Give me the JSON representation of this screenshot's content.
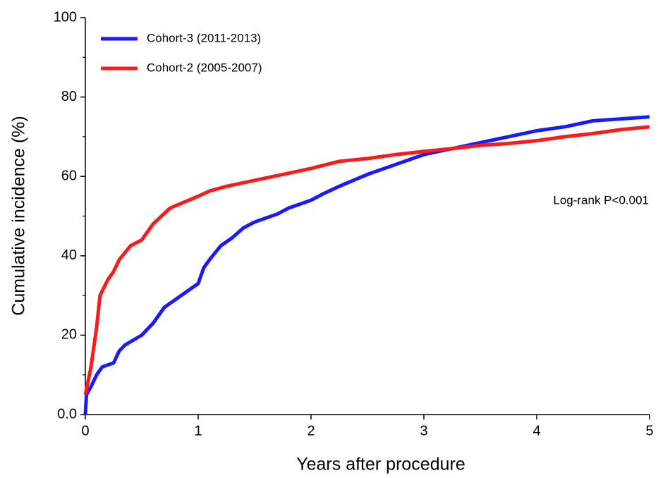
{
  "chart_data": {
    "type": "line",
    "xlabel": "Years after procedure",
    "ylabel": "Cumulative incidence (%)",
    "annotation": "Log-rank P<0.001",
    "xlim": [
      0,
      5
    ],
    "xticks": [
      0,
      1,
      2,
      3,
      4,
      5
    ],
    "ylim": [
      0,
      100
    ],
    "yticks": [
      {
        "value": 0,
        "label": "0.0"
      },
      20,
      40,
      60,
      80,
      100
    ],
    "yminor_ticks": [
      10,
      30,
      50,
      70,
      90
    ],
    "legend": "upper-left",
    "series": [
      {
        "name": "Cohort-3 (2011-2013)",
        "color": "#1a1aff",
        "x": [
          0,
          0.01,
          0.05,
          0.1,
          0.15,
          0.25,
          0.3,
          0.35,
          0.5,
          0.6,
          0.7,
          0.8,
          0.9,
          1.0,
          1.05,
          1.1,
          1.2,
          1.3,
          1.4,
          1.5,
          1.7,
          1.8,
          2.0,
          2.1,
          2.25,
          2.5,
          2.75,
          3.0,
          3.25,
          3.5,
          3.75,
          4.0,
          4.25,
          4.5,
          4.75,
          5.0
        ],
        "values": [
          0,
          5,
          7,
          10,
          12,
          13,
          16,
          17.5,
          20,
          23,
          27,
          29,
          31,
          33,
          37,
          39,
          42.5,
          44.5,
          47,
          48.5,
          50.5,
          52,
          54,
          55.5,
          57.5,
          60.5,
          63,
          65.5,
          67,
          68.5,
          70,
          71.5,
          72.5,
          74,
          74.5,
          75
        ]
      },
      {
        "name": "Cohort-2 (2005-2007)",
        "color": "#ff1a1a",
        "x": [
          0,
          0.05,
          0.1,
          0.13,
          0.2,
          0.25,
          0.3,
          0.4,
          0.5,
          0.6,
          0.75,
          1.0,
          1.1,
          1.25,
          1.5,
          1.75,
          2.0,
          2.25,
          2.5,
          2.75,
          3.0,
          3.25,
          3.5,
          3.75,
          4.0,
          4.25,
          4.5,
          4.75,
          5.0
        ],
        "values": [
          5,
          12,
          22,
          30,
          34,
          36,
          39,
          42.5,
          44,
          48,
          52,
          55,
          56.3,
          57.5,
          59,
          60.5,
          62,
          63.8,
          64.5,
          65.5,
          66.3,
          67,
          67.8,
          68.3,
          69,
          70,
          70.8,
          71.8,
          72.5
        ]
      }
    ]
  }
}
